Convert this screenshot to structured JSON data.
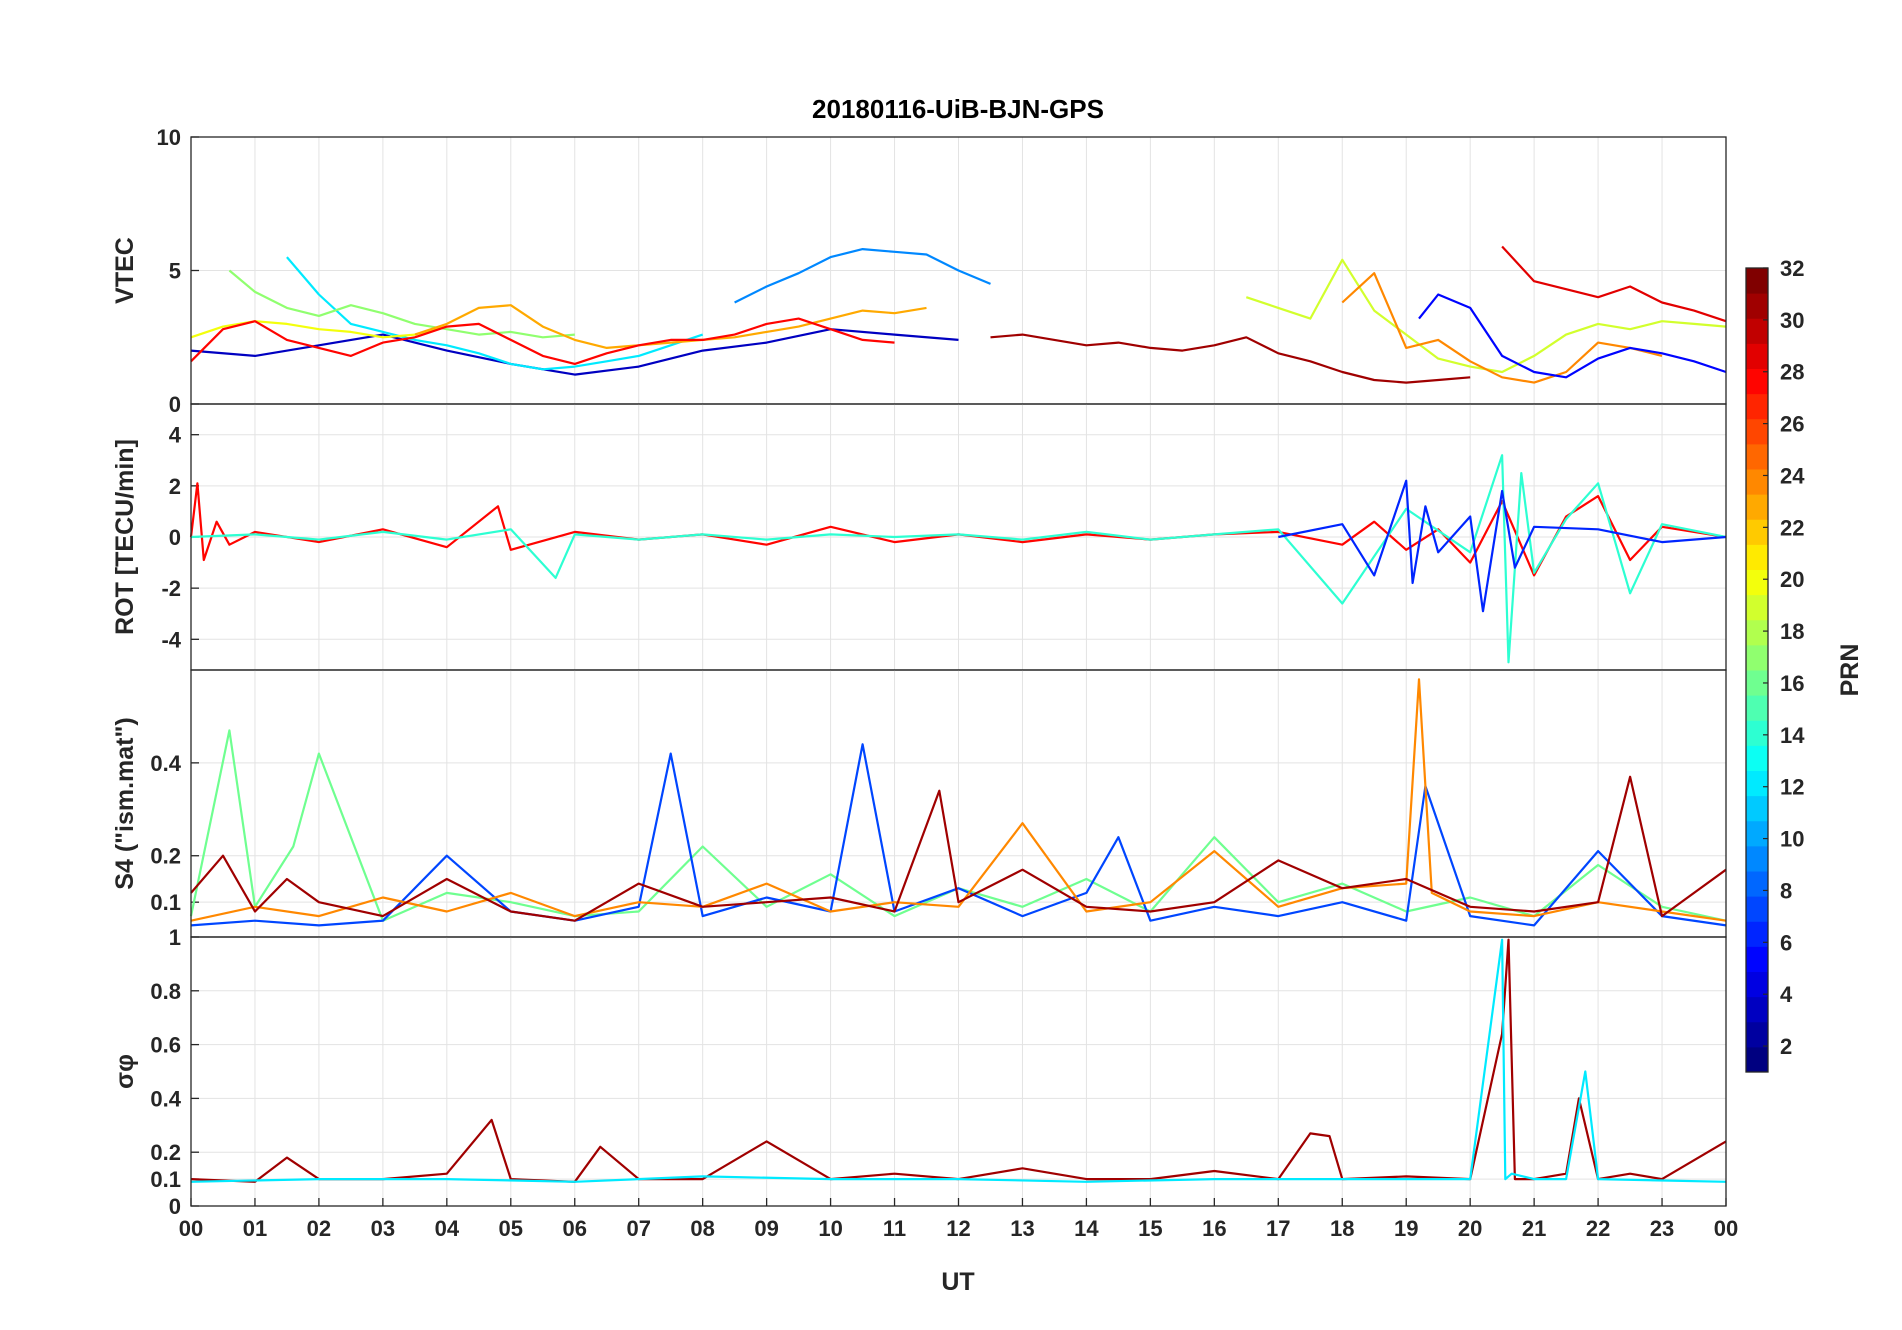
{
  "chart_data": {
    "type": "line",
    "title": "20180116-UiB-BJN-GPS",
    "xlabel": "UT",
    "x_tick_labels": [
      "00",
      "01",
      "02",
      "03",
      "04",
      "05",
      "06",
      "07",
      "08",
      "09",
      "10",
      "11",
      "12",
      "13",
      "14",
      "15",
      "16",
      "17",
      "18",
      "19",
      "20",
      "21",
      "22",
      "23",
      "00"
    ],
    "xlim": [
      0,
      24
    ],
    "grid": true,
    "colorbar": {
      "label": "PRN",
      "range": [
        1,
        32
      ],
      "tick_labels": [
        "2",
        "4",
        "6",
        "8",
        "10",
        "12",
        "14",
        "16",
        "18",
        "20",
        "22",
        "24",
        "26",
        "28",
        "30",
        "32"
      ],
      "colormap": "jet"
    },
    "panels": [
      {
        "name": "vtec",
        "ylabel": "VTEC",
        "ylim": [
          0,
          10
        ],
        "ytick_labels": [
          "0",
          "5",
          "10"
        ],
        "series": [
          {
            "prn": 3,
            "x": [
              0,
              1,
              2,
              3,
              4,
              5,
              6,
              7,
              8,
              9,
              10,
              11,
              12
            ],
            "y": [
              2.0,
              1.8,
              2.2,
              2.6,
              2.0,
              1.5,
              1.1,
              1.4,
              2.0,
              2.3,
              2.8,
              2.6,
              2.4
            ]
          },
          {
            "prn": 9,
            "x": [
              8.5,
              9,
              9.5,
              10,
              10.5,
              11,
              11.5,
              12,
              12.5
            ],
            "y": [
              3.8,
              4.4,
              4.9,
              5.5,
              5.8,
              5.7,
              5.6,
              5.0,
              4.5
            ]
          },
          {
            "prn": 12,
            "x": [
              1.5,
              2,
              2.5,
              3,
              3.5,
              4,
              4.5,
              5,
              5.5,
              6,
              6.5,
              7,
              7.5,
              8
            ],
            "y": [
              5.5,
              4.1,
              3.0,
              2.7,
              2.4,
              2.2,
              1.9,
              1.5,
              1.3,
              1.4,
              1.6,
              1.8,
              2.2,
              2.6
            ]
          },
          {
            "prn": 17,
            "x": [
              0.6,
              1,
              1.5,
              2,
              2.5,
              3,
              3.5,
              4,
              4.5,
              5,
              5.5,
              6
            ],
            "y": [
              5.0,
              4.2,
              3.6,
              3.3,
              3.7,
              3.4,
              3.0,
              2.8,
              2.6,
              2.7,
              2.5,
              2.6
            ]
          },
          {
            "prn": 20,
            "x": [
              0,
              0.5,
              1,
              1.5,
              2,
              2.5,
              3,
              3.5,
              4
            ],
            "y": [
              2.5,
              2.9,
              3.1,
              3.0,
              2.8,
              2.7,
              2.5,
              2.6,
              2.9
            ]
          },
          {
            "prn": 23,
            "x": [
              3.5,
              4,
              4.5,
              5,
              5.5,
              6,
              6.5,
              7,
              7.5,
              8,
              8.5,
              9,
              9.5,
              10,
              10.5,
              11,
              11.5
            ],
            "y": [
              2.6,
              3.0,
              3.6,
              3.7,
              2.9,
              2.4,
              2.1,
              2.2,
              2.3,
              2.4,
              2.5,
              2.7,
              2.9,
              3.2,
              3.5,
              3.4,
              3.6
            ]
          },
          {
            "prn": 28,
            "x": [
              0,
              0.5,
              1,
              1.5,
              2,
              2.5,
              3,
              3.5,
              4,
              4.5,
              5,
              5.5,
              6,
              6.5,
              7,
              7.5,
              8,
              8.5,
              9,
              9.5,
              10,
              10.5,
              11
            ],
            "y": [
              1.6,
              2.8,
              3.1,
              2.4,
              2.1,
              1.8,
              2.3,
              2.5,
              2.9,
              3.0,
              2.4,
              1.8,
              1.5,
              1.9,
              2.2,
              2.4,
              2.4,
              2.6,
              3.0,
              3.2,
              2.8,
              2.4,
              2.3
            ]
          },
          {
            "prn": 31,
            "x": [
              12.5,
              13,
              13.5,
              14,
              14.5,
              15,
              15.5,
              16,
              16.5,
              17,
              17.5,
              18,
              18.5,
              19,
              19.5,
              20
            ],
            "y": [
              2.5,
              2.6,
              2.4,
              2.2,
              2.3,
              2.1,
              2.0,
              2.2,
              2.5,
              1.9,
              1.6,
              1.2,
              0.9,
              0.8,
              0.9,
              1.0
            ]
          },
          {
            "prn": 19,
            "x": [
              16.5,
              17,
              17.5,
              18,
              18.5,
              19,
              19.5,
              20,
              20.5,
              21,
              21.5,
              22,
              22.5,
              23,
              23.5,
              24
            ],
            "y": [
              4.0,
              3.6,
              3.2,
              5.4,
              3.5,
              2.6,
              1.7,
              1.4,
              1.2,
              1.8,
              2.6,
              3.0,
              2.8,
              3.1,
              3.0,
              2.9
            ]
          },
          {
            "prn": 24,
            "x": [
              18,
              18.5,
              19,
              19.5,
              20,
              20.5,
              21,
              21.5,
              22,
              22.5,
              23
            ],
            "y": [
              3.8,
              4.9,
              2.1,
              2.4,
              1.6,
              1.0,
              0.8,
              1.2,
              2.3,
              2.1,
              1.8
            ]
          },
          {
            "prn": 29,
            "x": [
              20.5,
              21,
              21.5,
              22,
              22.5,
              23,
              23.5,
              24
            ],
            "y": [
              5.9,
              4.6,
              4.3,
              4.0,
              4.4,
              3.8,
              3.5,
              3.1
            ]
          },
          {
            "prn": 5,
            "x": [
              19.2,
              19.5,
              20,
              20.5,
              21,
              21.5,
              22,
              22.5,
              23,
              23.5,
              24
            ],
            "y": [
              3.2,
              4.1,
              3.6,
              1.8,
              1.2,
              1.0,
              1.7,
              2.1,
              1.9,
              1.6,
              1.2
            ]
          }
        ]
      },
      {
        "name": "rot",
        "ylabel": "ROT [TECU/min]",
        "ylim": [
          -5.2,
          5.2
        ],
        "ytick_labels": [
          "-4",
          "-2",
          "0",
          "2",
          "4"
        ],
        "series": [
          {
            "prn": 28,
            "x": [
              0,
              0.1,
              0.2,
              0.4,
              0.6,
              1,
              2,
              3,
              4,
              4.8,
              5,
              6,
              7,
              8,
              9,
              10,
              11,
              12,
              13,
              14,
              15,
              16,
              17,
              18,
              18.5,
              19,
              19.5,
              20,
              20.5,
              21,
              21.5,
              22,
              22.5,
              23,
              24
            ],
            "y": [
              0,
              2.1,
              -0.9,
              0.6,
              -0.3,
              0.2,
              -0.2,
              0.3,
              -0.4,
              1.2,
              -0.5,
              0.2,
              -0.1,
              0.1,
              -0.3,
              0.4,
              -0.2,
              0.1,
              -0.2,
              0.1,
              -0.1,
              0.1,
              0.2,
              -0.3,
              0.6,
              -0.5,
              0.3,
              -1.0,
              1.4,
              -1.5,
              0.8,
              1.6,
              -0.9,
              0.4,
              0
            ]
          },
          {
            "prn": 14,
            "x": [
              0,
              1,
              2,
              3,
              4,
              5,
              5.7,
              6,
              7,
              8,
              9,
              10,
              11,
              12,
              13,
              14,
              15,
              16,
              17,
              18,
              19,
              20,
              20.5,
              20.6,
              20.8,
              21,
              21.5,
              22,
              22.5,
              23,
              24
            ],
            "y": [
              0,
              0.1,
              -0.1,
              0.2,
              -0.1,
              0.3,
              -1.6,
              0.1,
              -0.1,
              0.1,
              -0.1,
              0.1,
              0,
              0.1,
              -0.1,
              0.2,
              -0.1,
              0.1,
              0.3,
              -2.6,
              1.1,
              -0.6,
              3.2,
              -4.9,
              2.5,
              -1.4,
              0.7,
              2.1,
              -2.2,
              0.5,
              0
            ]
          },
          {
            "prn": 6,
            "x": [
              17,
              18,
              18.5,
              19,
              19.1,
              19.3,
              19.5,
              20,
              20.2,
              20.5,
              20.7,
              21,
              22,
              23,
              24
            ],
            "y": [
              0,
              0.5,
              -1.5,
              2.2,
              -1.8,
              1.2,
              -0.6,
              0.8,
              -2.9,
              1.8,
              -1.2,
              0.4,
              0.3,
              -0.2,
              0
            ]
          }
        ]
      },
      {
        "name": "s4",
        "ylabel": "S4 (\"ism.mat\")",
        "ylim": [
          0.025,
          0.6
        ],
        "ytick_labels": [
          "0.1",
          "0.2",
          "0.4"
        ],
        "series": [
          {
            "prn": 16,
            "x": [
              0,
              0.6,
              1,
              1.6,
              2,
              3,
              4,
              5,
              6,
              7,
              8,
              9,
              10,
              11,
              12,
              13,
              14,
              15,
              16,
              17,
              18,
              19,
              20,
              21,
              22,
              23,
              24
            ],
            "y": [
              0.07,
              0.47,
              0.09,
              0.22,
              0.42,
              0.06,
              0.12,
              0.1,
              0.07,
              0.08,
              0.22,
              0.09,
              0.16,
              0.07,
              0.13,
              0.09,
              0.15,
              0.08,
              0.24,
              0.1,
              0.14,
              0.08,
              0.11,
              0.07,
              0.18,
              0.09,
              0.06
            ]
          },
          {
            "prn": 7,
            "x": [
              0,
              1,
              2,
              3,
              4,
              5,
              6,
              7,
              7.5,
              8,
              9,
              10,
              10.5,
              11,
              12,
              13,
              14,
              14.5,
              15,
              16,
              17,
              18,
              19,
              19.3,
              20,
              21,
              22,
              23,
              24
            ],
            "y": [
              0.05,
              0.06,
              0.05,
              0.06,
              0.2,
              0.08,
              0.06,
              0.09,
              0.42,
              0.07,
              0.11,
              0.08,
              0.44,
              0.08,
              0.13,
              0.07,
              0.12,
              0.24,
              0.06,
              0.09,
              0.07,
              0.1,
              0.06,
              0.35,
              0.07,
              0.05,
              0.21,
              0.07,
              0.05
            ]
          },
          {
            "prn": 24,
            "x": [
              0,
              1,
              2,
              3,
              4,
              5,
              6,
              7,
              8,
              9,
              10,
              11,
              12,
              13,
              14,
              15,
              16,
              17,
              18,
              19,
              19.2,
              19.4,
              20,
              21,
              22,
              23,
              24
            ],
            "y": [
              0.06,
              0.09,
              0.07,
              0.11,
              0.08,
              0.12,
              0.07,
              0.1,
              0.09,
              0.14,
              0.08,
              0.1,
              0.09,
              0.27,
              0.08,
              0.1,
              0.21,
              0.09,
              0.13,
              0.14,
              0.58,
              0.12,
              0.08,
              0.07,
              0.1,
              0.08,
              0.06
            ]
          },
          {
            "prn": 31,
            "x": [
              0,
              0.5,
              1,
              1.5,
              2,
              3,
              4,
              5,
              6,
              7,
              8,
              9,
              10,
              11,
              11.7,
              12,
              13,
              14,
              15,
              16,
              17,
              18,
              19,
              20,
              21,
              22,
              22.5,
              23,
              24
            ],
            "y": [
              0.12,
              0.2,
              0.08,
              0.15,
              0.1,
              0.07,
              0.15,
              0.08,
              0.06,
              0.14,
              0.09,
              0.1,
              0.11,
              0.08,
              0.34,
              0.1,
              0.17,
              0.09,
              0.08,
              0.1,
              0.19,
              0.13,
              0.15,
              0.09,
              0.08,
              0.1,
              0.37,
              0.07,
              0.17
            ]
          }
        ]
      },
      {
        "name": "sigma_phi",
        "ylabel": "σφ",
        "ylim": [
          0,
          1
        ],
        "ytick_labels": [
          "0",
          "0.1",
          "0.2",
          "0.4",
          "0.6",
          "0.8",
          "1"
        ],
        "series": [
          {
            "prn": 31,
            "x": [
              0,
              1,
              1.5,
              2,
              3,
              4,
              4.7,
              5,
              6,
              6.4,
              7,
              8,
              9,
              10,
              11,
              12,
              13,
              14,
              15,
              16,
              17,
              17.5,
              17.8,
              18,
              19,
              20,
              20.5,
              20.6,
              20.7,
              21,
              21.5,
              21.7,
              22,
              22.5,
              23,
              24
            ],
            "y": [
              0.1,
              0.09,
              0.18,
              0.1,
              0.1,
              0.12,
              0.32,
              0.1,
              0.09,
              0.22,
              0.1,
              0.1,
              0.24,
              0.1,
              0.12,
              0.1,
              0.14,
              0.1,
              0.1,
              0.13,
              0.1,
              0.27,
              0.26,
              0.1,
              0.11,
              0.1,
              0.64,
              0.99,
              0.1,
              0.1,
              0.12,
              0.4,
              0.1,
              0.12,
              0.1,
              0.24
            ]
          },
          {
            "prn": 12,
            "x": [
              0,
              2,
              4,
              6,
              8,
              10,
              12,
              14,
              16,
              18,
              20,
              20.5,
              20.55,
              20.65,
              21,
              21.5,
              21.8,
              22,
              24
            ],
            "y": [
              0.09,
              0.1,
              0.1,
              0.09,
              0.11,
              0.1,
              0.1,
              0.09,
              0.1,
              0.1,
              0.1,
              0.99,
              0.1,
              0.12,
              0.1,
              0.1,
              0.5,
              0.1,
              0.09
            ]
          }
        ]
      }
    ]
  }
}
